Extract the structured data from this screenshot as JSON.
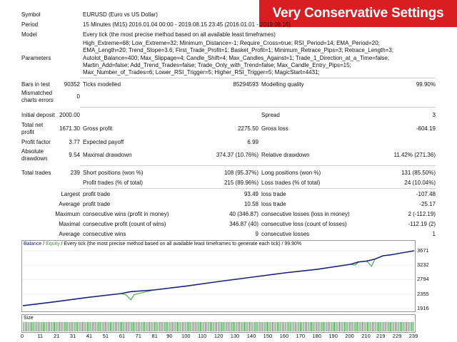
{
  "banner": "Very Conservative Settings",
  "labels": {
    "symbol": "Symbol",
    "period": "Period",
    "model": "Model",
    "parameters": "Parameters",
    "bars_in_test": "Bars in test",
    "mismatched": "Mismatched charts errors",
    "initial_deposit": "Initial deposit",
    "total_net_profit": "Total net profit",
    "profit_factor": "Profit factor",
    "absolute_drawdown": "Absolute drawdown",
    "total_trades": "Total trades"
  },
  "values": {
    "symbol": "EURUSD (Euro vs US Dollar)",
    "period": "15 Minutes (M15) 2016.01.04 00:00 - 2019.08.15 23:45 (2016.01.01 - 2019.08.16)",
    "model": "Every tick (the most precise method based on all available least timeframes)",
    "parameters": "High_Extreme=68; Low_Extreme=32; Minimum_Distance=-1; Require_Cross=true; RSI_Period=14; EMA_Period=20; EMA_Length=20; Trend_Slope=3.6; First_Trade_Profit=1; Basket_Profit=1; Minimum_Retrace_Pips=3; Retrace_Length=3; Autolot_Balance=400; Max_Slippage=4; Candle_Shift=4; Max_Candles_Against=1; Trade_1_Direction_at_a_Time=false; Martin_Add=false; Add_Trend_Trades=false; Trade_Only_with_Trend=false; Max_Candle_Entry_Pips=15; Max_Number_of_Trades=6; Lower_RSI_Trigger=5; Higher_RSI_Trigger=5; MagicStart=4431;",
    "bars_in_test": "90352",
    "ticks_label": "Ticks modelled",
    "ticks": "85294593",
    "quality_label": "Modelling quality",
    "quality": "99.90%",
    "mismatched": "0",
    "initial_deposit": "2000.00",
    "spread_label": "Spread",
    "spread": "3",
    "total_net_profit": "1671.30",
    "gross_profit_label": "Gross profit",
    "gross_profit": "2275.50",
    "gross_loss_label": "Gross loss",
    "gross_loss": "-604.19",
    "profit_factor": "3.77",
    "expected_payoff_label": "Expected payoff",
    "expected_payoff": "6.99",
    "absolute_drawdown": "9.54",
    "maximal_drawdown_label": "Maximal drawdown",
    "maximal_drawdown": "374.37 (10.76%)",
    "relative_drawdown_label": "Relative drawdown",
    "relative_drawdown": "11.42% (271.36)",
    "total_trades": "239",
    "short_label": "Short positions (won %)",
    "short": "108 (95.37%)",
    "long_label": "Long positions (won %)",
    "long": "131 (85.50%)",
    "profit_trades_label": "Profit trades (% of total)",
    "profit_trades": "215 (89.96%)",
    "loss_trades_label": "Loss trades (% of total)",
    "loss_trades": "24 (10.04%)"
  },
  "stats_rows": [
    {
      "prefix": "Largest",
      "l1": "profit trade",
      "v1": "93.49",
      "l2": "loss trade",
      "v2": "-107.48"
    },
    {
      "prefix": "Average",
      "l1": "profit trade",
      "v1": "10.58",
      "l2": "loss trade",
      "v2": "-25.17"
    },
    {
      "prefix": "Maximum",
      "l1": "consecutive wins (profit in money)",
      "v1": "40 (346.87)",
      "l2": "consecutive losses (loss in money)",
      "v2": "2 (-112.19)"
    },
    {
      "prefix": "Maximal",
      "l1": "consecutive profit (count of wins)",
      "v1": "346.87 (40)",
      "l2": "consecutive loss (count of losses)",
      "v2": "-112.19 (2)"
    },
    {
      "prefix": "Average",
      "l1": "consecutive wins",
      "v1": "9",
      "l2": "consecutive losses",
      "v2": "1"
    }
  ],
  "chart_header": {
    "balance": "Balance",
    "slash": " / ",
    "equity": "Equity",
    "rest": " / Every tick (the most precise method based on all available least timeframes to generate each tick) / 99.90%"
  },
  "size_label": "Size",
  "colors": {
    "balance": "#1a237e",
    "equity": "#2e9e2e",
    "banner": "#d81e22",
    "size_bars": "#2e7d32"
  },
  "chart_data": {
    "type": "line",
    "x_ticks": [
      "0",
      "11",
      "21",
      "31",
      "41",
      "51",
      "61",
      "71",
      "81",
      "90",
      "100",
      "110",
      "120",
      "130",
      "140",
      "150",
      "160",
      "170",
      "180",
      "190",
      "200",
      "210",
      "219",
      "229",
      "239"
    ],
    "y_ticks": [
      "3671",
      "3232",
      "2794",
      "2355",
      "1916"
    ],
    "ylim": [
      1916,
      3671
    ],
    "xlim": [
      0,
      239
    ],
    "series": [
      {
        "name": "Balance",
        "x": [
          0,
          20,
          40,
          60,
          66,
          80,
          100,
          120,
          140,
          160,
          180,
          200,
          205,
          210,
          215,
          220,
          225,
          230,
          239
        ],
        "y": [
          2000,
          2125,
          2257,
          2370,
          2430,
          2480,
          2600,
          2740,
          2870,
          3000,
          3110,
          3260,
          3330,
          3360,
          3420,
          3520,
          3550,
          3595,
          3671
        ]
      },
      {
        "name": "Equity",
        "x": [
          0,
          20,
          40,
          60,
          63,
          66,
          68,
          80,
          100,
          120,
          140,
          160,
          180,
          200,
          203,
          205,
          210,
          213,
          215,
          220,
          225,
          230,
          239
        ],
        "y": [
          2000,
          2125,
          2257,
          2370,
          2330,
          2180,
          2340,
          2480,
          2600,
          2740,
          2870,
          3000,
          3110,
          3260,
          3240,
          3330,
          3360,
          3200,
          3420,
          3520,
          3550,
          3595,
          3671
        ]
      }
    ]
  }
}
